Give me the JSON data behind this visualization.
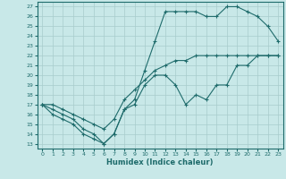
{
  "xlabel": "Humidex (Indice chaleur)",
  "bg_color": "#c8e8e8",
  "grid_color": "#a8cccc",
  "line_color": "#1e6b6b",
  "xlim": [
    -0.5,
    23.5
  ],
  "ylim": [
    12.5,
    27.5
  ],
  "xticks": [
    0,
    1,
    2,
    3,
    4,
    5,
    6,
    7,
    8,
    9,
    10,
    11,
    12,
    13,
    14,
    15,
    16,
    17,
    18,
    19,
    20,
    21,
    22,
    23
  ],
  "yticks": [
    13,
    14,
    15,
    16,
    17,
    18,
    19,
    20,
    21,
    22,
    23,
    24,
    25,
    26,
    27
  ],
  "line1_x": [
    0,
    1,
    2,
    3,
    4,
    5,
    6,
    7,
    8,
    9,
    10,
    11,
    12,
    13,
    14,
    15,
    16,
    17,
    18,
    19,
    20,
    21,
    22,
    23
  ],
  "line1_y": [
    17,
    16,
    15.5,
    15,
    14,
    13.5,
    13,
    14,
    16.5,
    17,
    19,
    20,
    20,
    19,
    17,
    18,
    17.5,
    19,
    19,
    21,
    21,
    22,
    22,
    22
  ],
  "line2_x": [
    0,
    1,
    2,
    3,
    4,
    5,
    6,
    7,
    8,
    9,
    10,
    11,
    12,
    13,
    14,
    15,
    16,
    17,
    18,
    19,
    20,
    21,
    22,
    23
  ],
  "line2_y": [
    17,
    16.5,
    16,
    15.5,
    14.5,
    14,
    13,
    14,
    16.5,
    17.5,
    20.5,
    23.5,
    26.5,
    26.5,
    26.5,
    26.5,
    26,
    26,
    27,
    27,
    26.5,
    26,
    25,
    23.5
  ],
  "line3_x": [
    0,
    1,
    2,
    3,
    4,
    5,
    6,
    7,
    8,
    9,
    10,
    11,
    12,
    13,
    14,
    15,
    16,
    17,
    18,
    19,
    20,
    21,
    22,
    23
  ],
  "line3_y": [
    17,
    17,
    16.5,
    16,
    15.5,
    15,
    14.5,
    15.5,
    17.5,
    18.5,
    19.5,
    20.5,
    21,
    21.5,
    21.5,
    22,
    22,
    22,
    22,
    22,
    22,
    22,
    22,
    22
  ]
}
